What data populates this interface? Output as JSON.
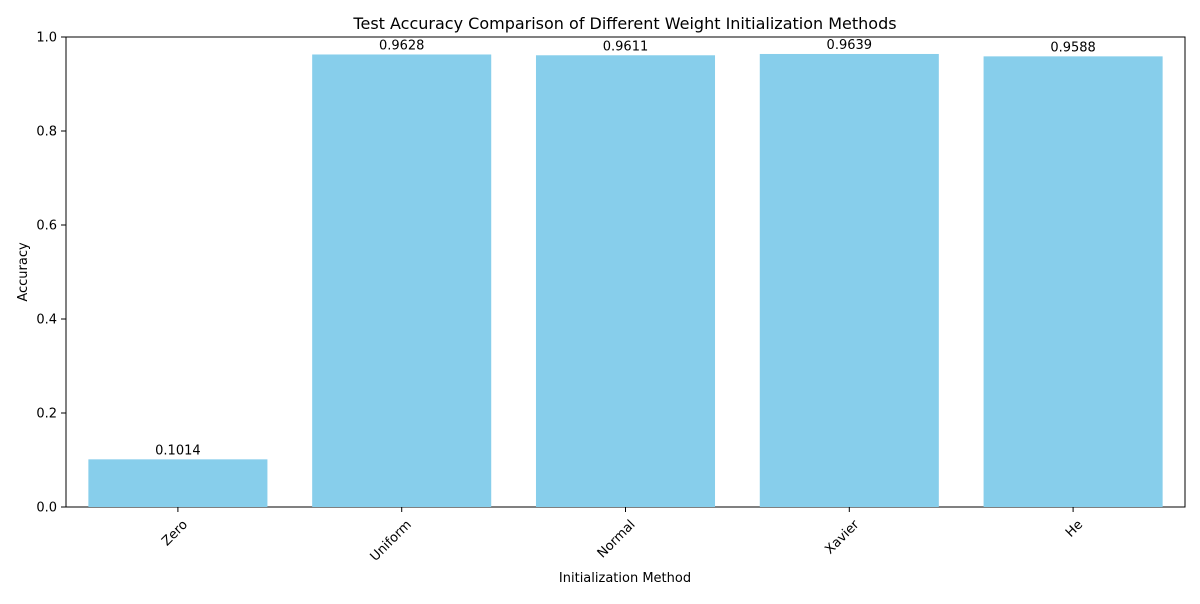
{
  "chart_data": {
    "type": "bar",
    "title": "Test Accuracy Comparison of Different Weight Initialization Methods",
    "xlabel": "Initialization Method",
    "ylabel": "Accuracy",
    "categories": [
      "Zero",
      "Uniform",
      "Normal",
      "Xavier",
      "He"
    ],
    "values": [
      0.1014,
      0.9628,
      0.9611,
      0.9639,
      0.9588
    ],
    "value_labels": [
      "0.1014",
      "0.9628",
      "0.9611",
      "0.9639",
      "0.9588"
    ],
    "ylim": [
      0,
      1.0
    ],
    "yticks": [
      0.0,
      0.2,
      0.4,
      0.6,
      0.8,
      1.0
    ],
    "ytick_labels": [
      "0.0",
      "0.2",
      "0.4",
      "0.6",
      "0.8",
      "1.0"
    ],
    "bar_color": "#87ceeb",
    "grid": false,
    "legend": false
  }
}
